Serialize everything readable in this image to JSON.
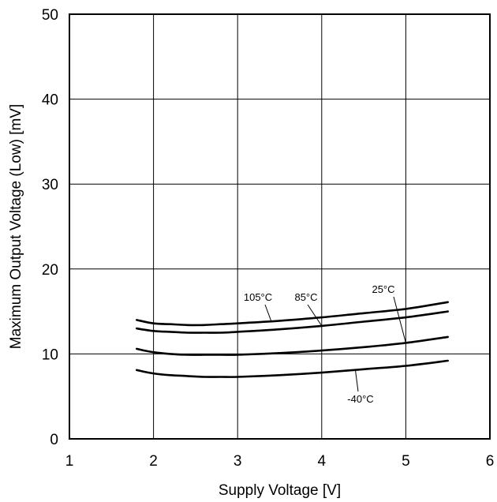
{
  "chart_data": {
    "type": "line",
    "title": "",
    "xlabel": "Supply Voltage [V]",
    "ylabel": "Maximum Output Voltage (Low) [mV]",
    "xlim": [
      1,
      6
    ],
    "ylim": [
      0,
      50
    ],
    "x_ticks": [
      "1",
      "2",
      "3",
      "4",
      "5",
      "6"
    ],
    "y_ticks": [
      "0",
      "10",
      "20",
      "30",
      "40",
      "50"
    ],
    "grid": true,
    "series": [
      {
        "name": "105°C",
        "x": [
          1.8,
          2.0,
          2.2,
          2.4,
          2.6,
          2.8,
          3.0,
          3.5,
          4.0,
          4.5,
          5.0,
          5.5
        ],
        "values": [
          14.0,
          13.6,
          13.5,
          13.4,
          13.4,
          13.5,
          13.6,
          13.9,
          14.3,
          14.8,
          15.3,
          16.1
        ]
      },
      {
        "name": "85°C",
        "x": [
          1.8,
          2.0,
          2.2,
          2.4,
          2.6,
          2.8,
          3.0,
          3.5,
          4.0,
          4.5,
          5.0,
          5.5
        ],
        "values": [
          13.0,
          12.7,
          12.6,
          12.5,
          12.5,
          12.5,
          12.6,
          12.9,
          13.3,
          13.8,
          14.3,
          15.0
        ]
      },
      {
        "name": "25°C",
        "x": [
          1.8,
          2.0,
          2.2,
          2.4,
          2.6,
          2.8,
          3.0,
          3.5,
          4.0,
          4.5,
          5.0,
          5.5
        ],
        "values": [
          10.6,
          10.2,
          10.0,
          9.9,
          9.9,
          9.9,
          9.9,
          10.1,
          10.4,
          10.8,
          11.3,
          12.0
        ]
      },
      {
        "name": "-40°C",
        "x": [
          1.8,
          2.0,
          2.2,
          2.4,
          2.6,
          2.8,
          3.0,
          3.5,
          4.0,
          4.5,
          5.0,
          5.5
        ],
        "values": [
          8.1,
          7.7,
          7.5,
          7.4,
          7.3,
          7.3,
          7.3,
          7.5,
          7.8,
          8.2,
          8.6,
          9.2
        ]
      }
    ]
  }
}
